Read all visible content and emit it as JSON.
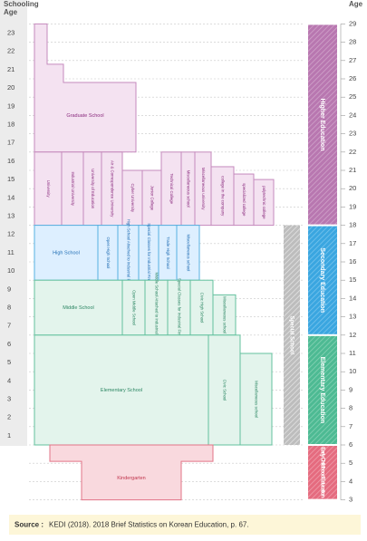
{
  "header": {
    "left_axis_title_lines": [
      "Schooling",
      "Age"
    ],
    "right_axis_title": "Age"
  },
  "schooling_ages": [
    1,
    2,
    3,
    4,
    5,
    6,
    7,
    8,
    9,
    10,
    11,
    12,
    13,
    14,
    15,
    16,
    17,
    18,
    19,
    20,
    21,
    22,
    23
  ],
  "ages": [
    3,
    4,
    5,
    6,
    7,
    8,
    9,
    10,
    11,
    12,
    13,
    14,
    15,
    16,
    17,
    18,
    19,
    20,
    21,
    22,
    23,
    24,
    25,
    26,
    27,
    28,
    29
  ],
  "graduate": "Graduate School",
  "schools": [
    {
      "label": "University"
    },
    {
      "label": "Industrial University"
    },
    {
      "label": "University of Education"
    },
    {
      "label": "Air & Correspondence University"
    },
    {
      "label": "Cyber University"
    },
    {
      "label": "Junior College"
    },
    {
      "label": "Technical College"
    },
    {
      "label": "Miscellaneous school"
    },
    {
      "label": "Miscellaneous university"
    },
    {
      "label": "college in the company"
    },
    {
      "label": "specialized college"
    },
    {
      "label": "polytechnic college"
    },
    {
      "label": "High School"
    },
    {
      "label": "Open High School"
    },
    {
      "label": "High School Attached to Industrial Firm"
    },
    {
      "label": "Special Classes for Industrial Firm"
    },
    {
      "label": "Trade High School"
    },
    {
      "label": "Miscellaneous school"
    },
    {
      "label": "Middle School"
    },
    {
      "label": "Open Middle School"
    },
    {
      "label": "Middle School Attached to Industrial Firm"
    },
    {
      "label": "Special Classes for Industrial Firm"
    },
    {
      "label": "Civic High School"
    },
    {
      "label": "Miscellaneous school"
    },
    {
      "label": "Elementary School"
    },
    {
      "label": "Civic School"
    },
    {
      "label": "Miscellaneous school"
    },
    {
      "label": "Kindergarten"
    }
  ],
  "special_school": "Special School",
  "bands": [
    {
      "label": "Higher Education"
    },
    {
      "label": "Secondary Education"
    },
    {
      "label": "Elementary Education"
    },
    {
      "label": "Early Childhood Education"
    }
  ],
  "source": {
    "label": "Source :",
    "text": "KEDI (2018). 2018 Brief Statistics on Korean Education, p. 67."
  }
}
